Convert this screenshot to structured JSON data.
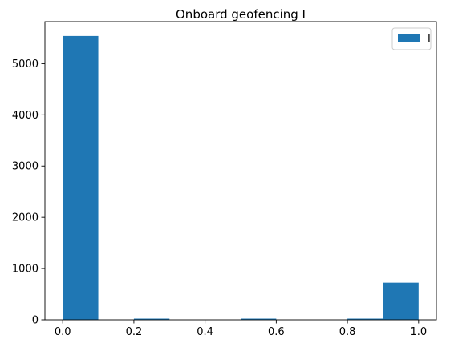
{
  "chart_data": {
    "type": "bar",
    "subtype": "histogram",
    "title": "Onboard geofencing I",
    "xlabel": "",
    "ylabel": "",
    "xlim": [
      -0.05,
      1.05
    ],
    "ylim": [
      0,
      5820
    ],
    "xticks": [
      0.0,
      0.2,
      0.4,
      0.6,
      0.8,
      1.0
    ],
    "xtick_labels": [
      "0.0",
      "0.2",
      "0.4",
      "0.6",
      "0.8",
      "1.0"
    ],
    "yticks": [
      0,
      1000,
      2000,
      3000,
      4000,
      5000
    ],
    "ytick_labels": [
      "0",
      "1000",
      "2000",
      "3000",
      "4000",
      "5000"
    ],
    "bin_edges": [
      0.0,
      0.1,
      0.2,
      0.3,
      0.4,
      0.5,
      0.6,
      0.7,
      0.8,
      0.9,
      1.0
    ],
    "series": [
      {
        "name": "I",
        "values": [
          5540,
          0,
          15,
          0,
          0,
          15,
          0,
          0,
          15,
          725
        ],
        "color": "#1f77b4"
      }
    ],
    "legend": {
      "entries": [
        "I"
      ],
      "placement": "top-right"
    },
    "grid": false
  }
}
